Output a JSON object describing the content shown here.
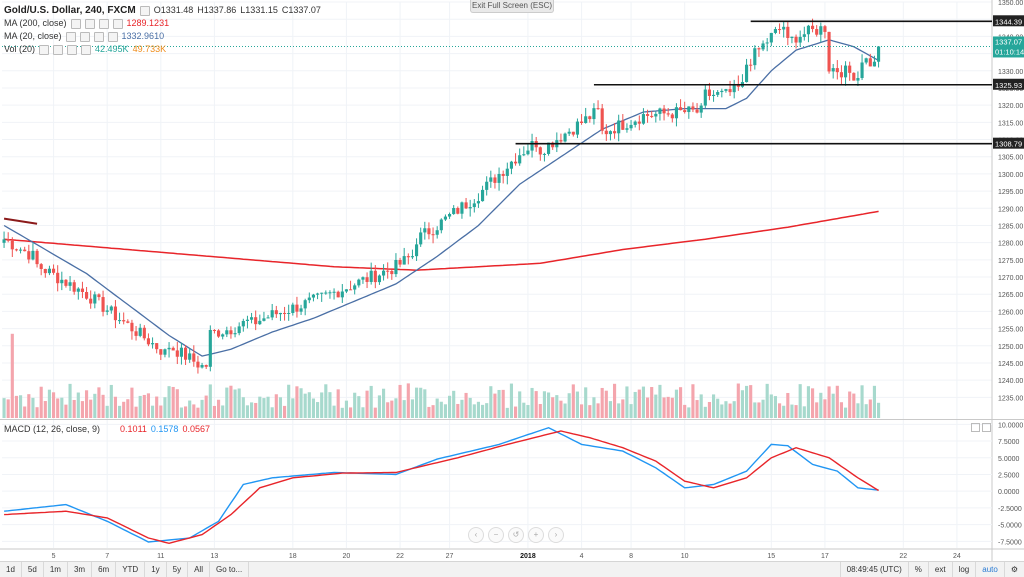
{
  "header": {
    "symbol": "Gold/U.S. Dollar, 240, FXCM",
    "open": "O1331.48",
    "high": "H1337.86",
    "low": "L1331.15",
    "close": "C1337.07",
    "ma200_label": "MA (200, close)",
    "ma200_value": "1289.1231",
    "ma20_label": "MA (20, close)",
    "ma20_value": "1332.9610",
    "vol_label": "Vol (20)",
    "vol_value1": "42.495K",
    "vol_value2": "49.733K",
    "exit_fullscreen": "Exit Full Screen (ESC)"
  },
  "macd": {
    "label": "MACD (12, 26, close, 9)",
    "v1": "0.1011",
    "v2": "0.1578",
    "v3": "0.0567",
    "ticks": [
      "10.0000",
      "7.5000",
      "5.0000",
      "2.5000",
      "0.0000",
      "-2.5000",
      "-5.0000",
      "-7.5000"
    ]
  },
  "bottom_bar": {
    "timeframes": [
      "1d",
      "5d",
      "1m",
      "3m",
      "6m",
      "YTD",
      "1y",
      "5y",
      "All",
      "Go to..."
    ],
    "time": "08:49:45 (UTC)",
    "pct": "%",
    "log": "log",
    "ext": "ext",
    "auto": "auto"
  },
  "colors": {
    "up": "#26a69a",
    "down": "#ef5350",
    "ma200": "#e8252a",
    "ma20": "#4a6fa5",
    "vol_up": "#a7d9cd",
    "vol_down": "#f4a5ad",
    "macd": "#2196f3",
    "signal": "#e8252a",
    "level_label_bg": "#222222"
  },
  "chart_data": [
    {
      "type": "candlestick",
      "title": "Gold/U.S. Dollar, 240, FXCM",
      "ylim": [
        1229,
        1350
      ],
      "y_ticks": [
        1235,
        1240,
        1245,
        1250,
        1255,
        1260,
        1265,
        1270,
        1275,
        1280,
        1285,
        1290,
        1295,
        1300,
        1305,
        1310,
        1315,
        1320,
        1325,
        1330,
        1335,
        1340,
        1345,
        1350
      ],
      "x_ticks": [
        {
          "i": 12,
          "label": "5"
        },
        {
          "i": 25,
          "label": "7"
        },
        {
          "i": 38,
          "label": "11"
        },
        {
          "i": 51,
          "label": "13"
        },
        {
          "i": 70,
          "label": "18"
        },
        {
          "i": 83,
          "label": "20"
        },
        {
          "i": 96,
          "label": "22"
        },
        {
          "i": 108,
          "label": "27"
        },
        {
          "i": 127,
          "label": "2018"
        },
        {
          "i": 140,
          "label": "4"
        },
        {
          "i": 152,
          "label": "8"
        },
        {
          "i": 165,
          "label": "10"
        },
        {
          "i": 186,
          "label": "15"
        },
        {
          "i": 199,
          "label": "17"
        },
        {
          "i": 218,
          "label": "22"
        },
        {
          "i": 231,
          "label": "24"
        }
      ],
      "horizontal_levels": [
        {
          "value": 1344.39,
          "label": "1344.39",
          "from_i": 181
        },
        {
          "value": 1325.93,
          "label": "1325.93",
          "from_i": 143
        },
        {
          "value": 1308.79,
          "label": "1308.79",
          "from_i": 124
        }
      ],
      "current_price": {
        "value": 1337.07,
        "label": "1337.07",
        "countdown": "01:10:14"
      },
      "ma200": [
        [
          0,
          1281
        ],
        [
          20,
          1279
        ],
        [
          40,
          1277
        ],
        [
          60,
          1275
        ],
        [
          80,
          1273
        ],
        [
          100,
          1272
        ],
        [
          115,
          1273
        ],
        [
          130,
          1274
        ],
        [
          150,
          1278
        ],
        [
          170,
          1281
        ],
        [
          190,
          1284.5
        ],
        [
          212,
          1289.1
        ]
      ],
      "ma20": [
        [
          0,
          1285
        ],
        [
          10,
          1278
        ],
        [
          20,
          1271
        ],
        [
          30,
          1262
        ],
        [
          40,
          1253
        ],
        [
          48,
          1247
        ],
        [
          55,
          1249
        ],
        [
          65,
          1254
        ],
        [
          75,
          1258
        ],
        [
          85,
          1263
        ],
        [
          95,
          1268
        ],
        [
          105,
          1276
        ],
        [
          115,
          1285
        ],
        [
          125,
          1297
        ],
        [
          135,
          1305
        ],
        [
          145,
          1313
        ],
        [
          155,
          1318
        ],
        [
          165,
          1319
        ],
        [
          175,
          1319
        ],
        [
          180,
          1322
        ],
        [
          186,
          1330
        ],
        [
          192,
          1336
        ],
        [
          200,
          1339
        ],
        [
          206,
          1337
        ],
        [
          212,
          1333
        ]
      ]
    },
    {
      "type": "bar",
      "title": "Vol (20)",
      "ylim": [
        0,
        100
      ],
      "x_range": [
        0,
        212
      ]
    },
    {
      "type": "line",
      "title": "MACD (12, 26, close, 9)",
      "ylim": [
        -8.5,
        10.5
      ],
      "series": [
        {
          "name": "MACD",
          "points": [
            [
              0,
              -3.0
            ],
            [
              15,
              -2.0
            ],
            [
              25,
              -4.5
            ],
            [
              35,
              -7.6
            ],
            [
              45,
              -7.0
            ],
            [
              52,
              -4.5
            ],
            [
              58,
              1.0
            ],
            [
              65,
              2.0
            ],
            [
              80,
              2.8
            ],
            [
              95,
              2.5
            ],
            [
              105,
              4.8
            ],
            [
              120,
              7.0
            ],
            [
              132,
              9.5
            ],
            [
              140,
              7.0
            ],
            [
              150,
              6.0
            ],
            [
              158,
              3.5
            ],
            [
              165,
              0.5
            ],
            [
              172,
              1.0
            ],
            [
              180,
              3.0
            ],
            [
              186,
              7.0
            ],
            [
              190,
              6.8
            ],
            [
              196,
              4.0
            ],
            [
              202,
              3.0
            ],
            [
              207,
              0.5
            ],
            [
              212,
              0.16
            ]
          ]
        },
        {
          "name": "Signal",
          "points": [
            [
              0,
              -3.5
            ],
            [
              15,
              -3.0
            ],
            [
              25,
              -4.0
            ],
            [
              35,
              -7.0
            ],
            [
              40,
              -7.8
            ],
            [
              48,
              -6.5
            ],
            [
              55,
              -3.5
            ],
            [
              62,
              0.5
            ],
            [
              70,
              2.0
            ],
            [
              82,
              2.7
            ],
            [
              95,
              2.8
            ],
            [
              110,
              5.0
            ],
            [
              122,
              7.0
            ],
            [
              135,
              9.0
            ],
            [
              142,
              8.0
            ],
            [
              150,
              6.5
            ],
            [
              158,
              4.5
            ],
            [
              165,
              1.5
            ],
            [
              172,
              0.5
            ],
            [
              180,
              2.0
            ],
            [
              186,
              5.0
            ],
            [
              192,
              6.5
            ],
            [
              200,
              5.0
            ],
            [
              207,
              2.0
            ],
            [
              212,
              0.1
            ]
          ]
        }
      ]
    }
  ]
}
